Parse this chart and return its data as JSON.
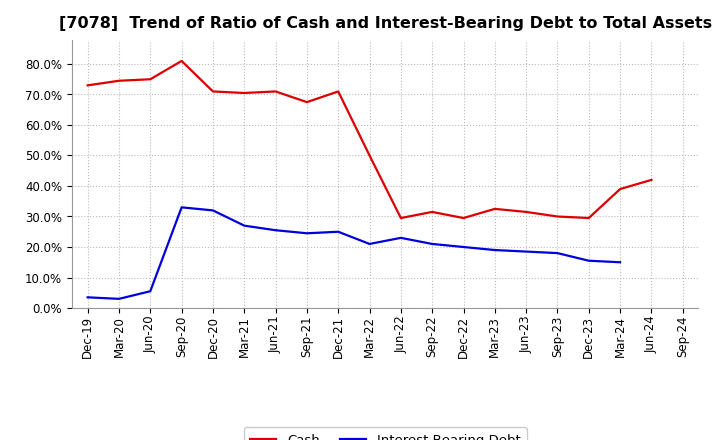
{
  "title": "[7078]  Trend of Ratio of Cash and Interest-Bearing Debt to Total Assets",
  "x_labels": [
    "Dec-19",
    "Mar-20",
    "Jun-20",
    "Sep-20",
    "Dec-20",
    "Mar-21",
    "Jun-21",
    "Sep-21",
    "Dec-21",
    "Mar-22",
    "Jun-22",
    "Sep-22",
    "Dec-22",
    "Mar-23",
    "Jun-23",
    "Sep-23",
    "Dec-23",
    "Mar-24",
    "Jun-24",
    "Sep-24"
  ],
  "cash": [
    0.73,
    0.745,
    0.75,
    0.81,
    0.71,
    0.705,
    0.71,
    0.675,
    0.71,
    0.5,
    0.295,
    0.315,
    0.295,
    0.325,
    0.315,
    0.3,
    0.295,
    0.39,
    0.42,
    null
  ],
  "ibd": [
    0.035,
    0.03,
    0.055,
    0.33,
    0.32,
    0.27,
    0.255,
    0.245,
    0.25,
    0.21,
    0.23,
    0.21,
    0.2,
    0.19,
    0.185,
    0.18,
    0.155,
    0.15,
    null,
    null
  ],
  "cash_color": "#dd0000",
  "ibd_color": "#0000dd",
  "ylim": [
    0.0,
    0.88
  ],
  "yticks": [
    0.0,
    0.1,
    0.2,
    0.3,
    0.4,
    0.5,
    0.6,
    0.7,
    0.8
  ],
  "background_color": "#ffffff",
  "grid_color": "#bbbbbb",
  "legend_cash": "Cash",
  "legend_ibd": "Interest-Bearing Debt",
  "title_fontsize": 11.5,
  "axis_fontsize": 8.5,
  "legend_fontsize": 9.5,
  "line_width": 1.6
}
